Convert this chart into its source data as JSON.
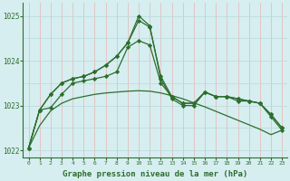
{
  "hours": [
    0,
    1,
    2,
    3,
    4,
    5,
    6,
    7,
    8,
    9,
    10,
    11,
    12,
    13,
    14,
    15,
    16,
    17,
    18,
    19,
    20,
    21,
    22,
    23
  ],
  "line_smooth": [
    1022.05,
    1022.55,
    1022.88,
    1023.05,
    1023.15,
    1023.2,
    1023.25,
    1023.28,
    1023.3,
    1023.32,
    1023.33,
    1023.32,
    1023.28,
    1023.22,
    1023.15,
    1023.06,
    1022.97,
    1022.87,
    1022.77,
    1022.67,
    1022.57,
    1022.47,
    1022.35,
    1022.45
  ],
  "line_a": [
    1022.05,
    1022.9,
    1022.95,
    1023.25,
    1023.5,
    1023.55,
    1023.6,
    1023.65,
    1023.75,
    1024.3,
    1024.45,
    1024.35,
    1023.5,
    1023.2,
    1023.05,
    1023.05,
    1023.3,
    1023.2,
    1023.2,
    1023.15,
    1023.1,
    1023.05,
    1022.8,
    1022.5
  ],
  "line_b": [
    1022.05,
    1022.9,
    1023.25,
    1023.5,
    1023.6,
    1023.65,
    1023.75,
    1023.9,
    1024.1,
    1024.4,
    1024.9,
    1024.75,
    1023.65,
    1023.2,
    1023.05,
    1023.05,
    1023.3,
    1023.2,
    1023.2,
    1023.15,
    1023.1,
    1023.05,
    1022.8,
    1022.5
  ],
  "line_c": [
    1022.05,
    1022.9,
    1023.25,
    1023.5,
    1023.6,
    1023.65,
    1023.75,
    1023.9,
    1024.1,
    1024.4,
    1025.0,
    1024.78,
    1023.6,
    1023.15,
    1023.0,
    1023.0,
    1023.3,
    1023.2,
    1023.2,
    1023.1,
    1023.1,
    1023.05,
    1022.75,
    1022.45
  ],
  "ylim": [
    1021.85,
    1025.3
  ],
  "yticks": [
    1022,
    1023,
    1024,
    1025
  ],
  "xlim": [
    -0.5,
    23.5
  ],
  "xlabel": "Graphe pression niveau de la mer (hPa)",
  "line_color": "#2d6e2d",
  "bg_color": "#d6eef0",
  "grid_h_color": "#b8d8da",
  "grid_v_color": "#e8b4b4",
  "marker": "D",
  "markersize": 2.2,
  "linewidth": 0.9
}
